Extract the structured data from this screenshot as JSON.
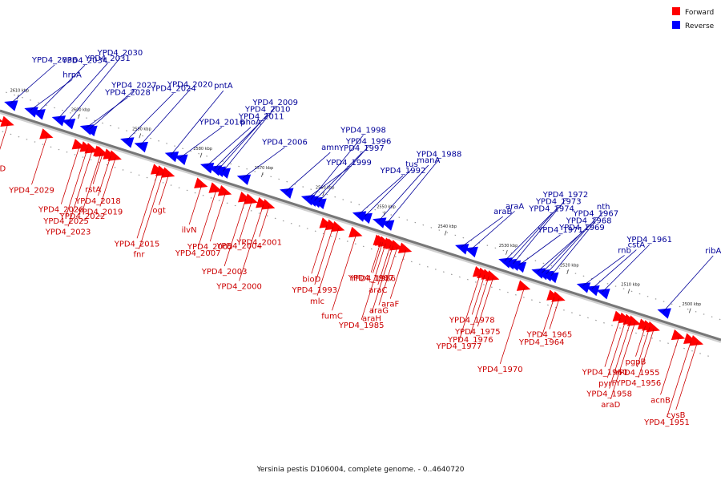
{
  "caption": "Yersinia pestis D106004, complete genome. - 0..4640720",
  "legend": [
    {
      "label": "Forward",
      "color": "#ff0000"
    },
    {
      "label": "Reverse",
      "color": "#0000ff"
    }
  ],
  "colors": {
    "forward": "#ff0000",
    "reverse": "#0000ff",
    "backbone": "#888888",
    "label_forward": "#cc0000",
    "label_reverse": "#000099"
  },
  "axis": {
    "start_kbp": 2612,
    "end_kbp": 2494
  },
  "ticks": [
    {
      "label": "2610 kbp",
      "kbp": 2610
    },
    {
      "label": "2600 kbp",
      "kbp": 2600
    },
    {
      "label": "2590 kbp",
      "kbp": 2590
    },
    {
      "label": "2580 kbp",
      "kbp": 2580
    },
    {
      "label": "2570 kbp",
      "kbp": 2570
    },
    {
      "label": "2560 kbp",
      "kbp": 2560
    },
    {
      "label": "2550 kbp",
      "kbp": 2550
    },
    {
      "label": "2540 kbp",
      "kbp": 2540
    },
    {
      "label": "2530 kbp",
      "kbp": 2530
    },
    {
      "label": "2520 kbp",
      "kbp": 2520
    },
    {
      "label": "2510 kbp",
      "kbp": 2510
    },
    {
      "label": "2500 kbp",
      "kbp": 2500
    }
  ],
  "reverse_genes": [
    {
      "name": "hrpA",
      "kbp": 2607.5
    },
    {
      "name": "YPD4_2036",
      "kbp": 2610.8
    },
    {
      "name": "YPD4_2034",
      "kbp": 2606.3
    },
    {
      "name": "YPD4_2031",
      "kbp": 2603.0
    },
    {
      "name": "YPD4_2030",
      "kbp": 2601.4
    },
    {
      "name": "YPD4_2028",
      "kbp": 2598.4
    },
    {
      "name": "YPD4_2027",
      "kbp": 2597.8
    },
    {
      "name": "YPD4_2024",
      "kbp": 2591.8
    },
    {
      "name": "YPD4_2020",
      "kbp": 2589.5
    },
    {
      "name": "pntA",
      "kbp": 2584.5
    },
    {
      "name": "YPD4_2016",
      "kbp": 2583.0
    },
    {
      "name": "phoA",
      "kbp": 2578.7
    },
    {
      "name": "YPD4_2011",
      "kbp": 2577.4
    },
    {
      "name": "YPD4_2010",
      "kbp": 2576.8
    },
    {
      "name": "YPD4_2009",
      "kbp": 2576.0
    },
    {
      "name": "YPD4_2006",
      "kbp": 2572.7
    },
    {
      "name": "amn",
      "kbp": 2565.7
    },
    {
      "name": "YPD4_1997",
      "kbp": 2561.0
    },
    {
      "name": "YPD4_1996",
      "kbp": 2560.3
    },
    {
      "name": "YPD4_1998",
      "kbp": 2561.6
    },
    {
      "name": "YPD4_1999",
      "kbp": 2562.2
    },
    {
      "name": "YPD4_1992",
      "kbp": 2553.8
    },
    {
      "name": "tus",
      "kbp": 2552.8
    },
    {
      "name": "manA",
      "kbp": 2550.5
    },
    {
      "name": "YPD4_1988",
      "kbp": 2549.2
    },
    {
      "name": "araB",
      "kbp": 2537.0
    },
    {
      "name": "araA",
      "kbp": 2535.5
    },
    {
      "name": "YPD4_1974",
      "kbp": 2529.9
    },
    {
      "name": "YPD4_1973",
      "kbp": 2529.2
    },
    {
      "name": "YPD4_1972",
      "kbp": 2528.5
    },
    {
      "name": "YPD4_1971",
      "kbp": 2527.6
    },
    {
      "name": "YPD4_1969",
      "kbp": 2524.5
    },
    {
      "name": "YPD4_1968",
      "kbp": 2523.8
    },
    {
      "name": "YPD4_1967",
      "kbp": 2523.1
    },
    {
      "name": "nth",
      "kbp": 2522.3
    },
    {
      "name": "rnb",
      "kbp": 2517.1
    },
    {
      "name": "cstA",
      "kbp": 2515.6
    },
    {
      "name": "YPD4_1961",
      "kbp": 2513.9
    },
    {
      "name": "ribA",
      "kbp": 2503.9
    }
  ],
  "forward_genes": [
    {
      "name": "dalD",
      "kbp": 2612.0
    },
    {
      "name": "acpD",
      "kbp": 2610.2
    },
    {
      "name": "YPD4_2029",
      "kbp": 2603.8
    },
    {
      "name": "YPD4_2026",
      "kbp": 2598.5
    },
    {
      "name": "YPD4_2025",
      "kbp": 2597.2
    },
    {
      "name": "YPD4_2023",
      "kbp": 2596.4
    },
    {
      "name": "rstA",
      "kbp": 2594.7
    },
    {
      "name": "YPD4_2018",
      "kbp": 2593.4
    },
    {
      "name": "YPD4_2019",
      "kbp": 2592.6
    },
    {
      "name": "YPD4_2022",
      "kbp": 2595.0
    },
    {
      "name": "YPD4_2015",
      "kbp": 2585.6
    },
    {
      "name": "fnr",
      "kbp": 2584.8
    },
    {
      "name": "ogt",
      "kbp": 2583.9
    },
    {
      "name": "ilvN",
      "kbp": 2578.5
    },
    {
      "name": "YPD4_2005",
      "kbp": 2574.6
    },
    {
      "name": "YPD4_2007",
      "kbp": 2576.1
    },
    {
      "name": "YPD4_2003",
      "kbp": 2571.3
    },
    {
      "name": "YPD4_2000",
      "kbp": 2568.4
    },
    {
      "name": "YPD4_2001",
      "kbp": 2567.5
    },
    {
      "name": "YPD4_2004",
      "kbp": 2570.3
    },
    {
      "name": "bioD",
      "kbp": 2558.0
    },
    {
      "name": "YPD4_1993",
      "kbp": 2557.0
    },
    {
      "name": "mlc",
      "kbp": 2556.1
    },
    {
      "name": "fumC",
      "kbp": 2553.2
    },
    {
      "name": "YPD4_1987",
      "kbp": 2549.2
    },
    {
      "name": "araC",
      "kbp": 2547.6
    },
    {
      "name": "araF",
      "kbp": 2545.1
    },
    {
      "name": "araG",
      "kbp": 2546.5
    },
    {
      "name": "araH",
      "kbp": 2547.2
    },
    {
      "name": "YPD4_1985",
      "kbp": 2548.4
    },
    {
      "name": "YPD4_1986",
      "kbp": 2548.9
    },
    {
      "name": "YPD4_1978",
      "kbp": 2532.2
    },
    {
      "name": "YPD4_1975",
      "kbp": 2530.8
    },
    {
      "name": "YPD4_1976",
      "kbp": 2531.5
    },
    {
      "name": "YPD4_1977",
      "kbp": 2532.9
    },
    {
      "name": "YPD4_1970",
      "kbp": 2525.7
    },
    {
      "name": "YPD4_1965",
      "kbp": 2520.0
    },
    {
      "name": "YPD4_1964",
      "kbp": 2520.8
    },
    {
      "name": "YPD4_1960",
      "kbp": 2510.0
    },
    {
      "name": "pyrF",
      "kbp": 2509.1
    },
    {
      "name": "YPD4_1958",
      "kbp": 2508.3
    },
    {
      "name": "araD",
      "kbp": 2507.6
    },
    {
      "name": "pgpB",
      "kbp": 2505.9
    },
    {
      "name": "YPD4_1955",
      "kbp": 2505.2
    },
    {
      "name": "YPD4_1956",
      "kbp": 2504.5
    },
    {
      "name": "acnB",
      "kbp": 2500.4
    },
    {
      "name": "cysB",
      "kbp": 2497.4
    },
    {
      "name": "YPD4_1951",
      "kbp": 2498.4
    }
  ]
}
